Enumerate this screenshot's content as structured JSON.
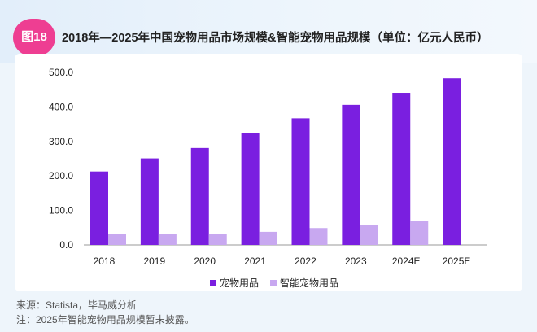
{
  "figure_badge": "图18",
  "chart_data": {
    "type": "bar",
    "title": "2018年—2025年中国宠物用品市场规模&智能宠物用品规模（单位：亿元人民币）",
    "categories": [
      "2018",
      "2019",
      "2020",
      "2021",
      "2022",
      "2023",
      "2024E",
      "2025E"
    ],
    "series": [
      {
        "name": "宠物用品",
        "color": "#7a1fe0",
        "values": [
          213,
          251,
          281,
          324,
          367,
          406,
          441,
          483
        ]
      },
      {
        "name": "智能宠物用品",
        "color": "#c8a8f0",
        "values": [
          31,
          31,
          33,
          38,
          49,
          58,
          69,
          null
        ]
      }
    ],
    "y_ticks": [
      "0.0",
      "100.0",
      "200.0",
      "300.0",
      "400.0",
      "500.0"
    ],
    "ylim": [
      0,
      500
    ],
    "grid": false,
    "legend_position": "bottom"
  },
  "footnotes": {
    "source": "来源：Statista，毕马威分析",
    "note": "注：2025年智能宠物用品规模暂未披露。"
  }
}
